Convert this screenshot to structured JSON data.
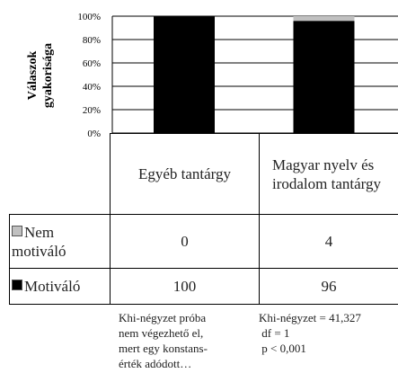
{
  "chart_data": {
    "type": "stacked-bar",
    "ylabel": [
      "Válaszok",
      "gyakorisága"
    ],
    "categories": [
      "Egyéb tantárgy",
      "Magyar nyelv és irodalom tantárgy"
    ],
    "series": [
      {
        "name": "Nem motiváló",
        "color": "#c0c0c0",
        "values": [
          0,
          4
        ]
      },
      {
        "name": "Motiváló",
        "color": "#000000",
        "values": [
          100,
          96
        ]
      }
    ],
    "ylim": [
      0,
      100
    ],
    "yticks": [
      {
        "value": 0,
        "label": "0%"
      },
      {
        "value": 20,
        "label": "20%"
      },
      {
        "value": 40,
        "label": "40%"
      },
      {
        "value": 60,
        "label": "60%"
      },
      {
        "value": 80,
        "label": "80%"
      },
      {
        "value": 100,
        "label": "100%"
      }
    ],
    "grid": true,
    "annotations": [
      [
        "Khi-négyzet próba",
        "nem végezhető el,",
        "mert egy konstans-",
        "érték adódott…"
      ],
      [
        "Khi-négyzet = 41,327",
        " df = 1",
        " p < 0,001"
      ]
    ]
  }
}
